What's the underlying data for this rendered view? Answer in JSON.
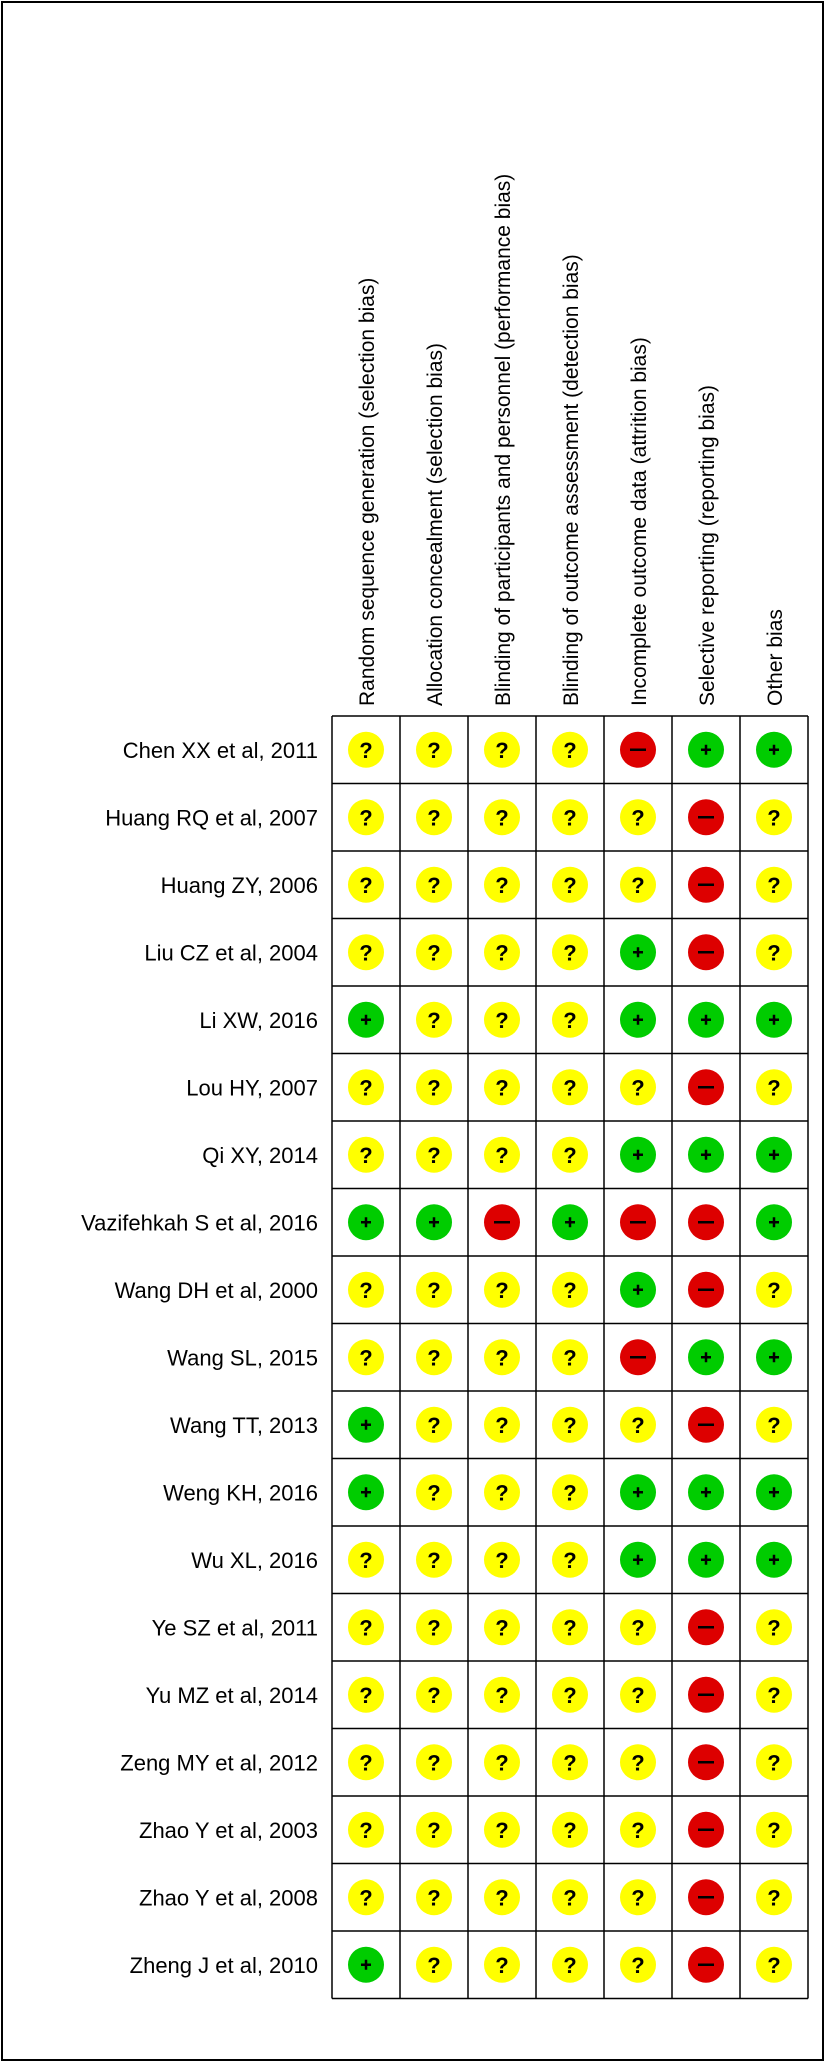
{
  "chart_data": {
    "type": "table",
    "columns": [
      "Random sequence generation (selection bias)",
      "Allocation concealment (selection bias)",
      "Blinding of participants and personnel (performance bias)",
      "Blinding of outcome assessment (detection bias)",
      "Incomplete outcome data (attrition bias)",
      "Selective reporting (reporting bias)",
      "Other bias"
    ],
    "rows": [
      {
        "study": "Chen XX et al, 2011",
        "ratings": [
          "?",
          "?",
          "?",
          "?",
          "-",
          "+",
          "+"
        ]
      },
      {
        "study": "Huang RQ et al, 2007",
        "ratings": [
          "?",
          "?",
          "?",
          "?",
          "?",
          "-",
          "?"
        ]
      },
      {
        "study": "Huang ZY, 2006",
        "ratings": [
          "?",
          "?",
          "?",
          "?",
          "?",
          "-",
          "?"
        ]
      },
      {
        "study": "Liu CZ et al, 2004",
        "ratings": [
          "?",
          "?",
          "?",
          "?",
          "+",
          "-",
          "?"
        ]
      },
      {
        "study": "Li XW, 2016",
        "ratings": [
          "+",
          "?",
          "?",
          "?",
          "+",
          "+",
          "+"
        ]
      },
      {
        "study": "Lou HY, 2007",
        "ratings": [
          "?",
          "?",
          "?",
          "?",
          "?",
          "-",
          "?"
        ]
      },
      {
        "study": "Qi XY, 2014",
        "ratings": [
          "?",
          "?",
          "?",
          "?",
          "+",
          "+",
          "+"
        ]
      },
      {
        "study": "Vazifehkah S et al, 2016",
        "ratings": [
          "+",
          "+",
          "-",
          "+",
          "-",
          "-",
          "+"
        ]
      },
      {
        "study": "Wang DH et al, 2000",
        "ratings": [
          "?",
          "?",
          "?",
          "?",
          "+",
          "-",
          "?"
        ]
      },
      {
        "study": "Wang SL, 2015",
        "ratings": [
          "?",
          "?",
          "?",
          "?",
          "-",
          "+",
          "+"
        ]
      },
      {
        "study": "Wang TT, 2013",
        "ratings": [
          "+",
          "?",
          "?",
          "?",
          "?",
          "-",
          "?"
        ]
      },
      {
        "study": "Weng KH, 2016",
        "ratings": [
          "+",
          "?",
          "?",
          "?",
          "+",
          "+",
          "+"
        ]
      },
      {
        "study": "Wu XL, 2016",
        "ratings": [
          "?",
          "?",
          "?",
          "?",
          "+",
          "+",
          "+"
        ]
      },
      {
        "study": "Ye SZ et al, 2011",
        "ratings": [
          "?",
          "?",
          "?",
          "?",
          "?",
          "-",
          "?"
        ]
      },
      {
        "study": "Yu MZ et al, 2014",
        "ratings": [
          "?",
          "?",
          "?",
          "?",
          "?",
          "-",
          "?"
        ]
      },
      {
        "study": "Zeng MY et al, 2012",
        "ratings": [
          "?",
          "?",
          "?",
          "?",
          "?",
          "-",
          "?"
        ]
      },
      {
        "study": "Zhao Y et al, 2003",
        "ratings": [
          "?",
          "?",
          "?",
          "?",
          "?",
          "-",
          "?"
        ]
      },
      {
        "study": "Zhao Y et al, 2008",
        "ratings": [
          "?",
          "?",
          "?",
          "?",
          "?",
          "-",
          "?"
        ]
      },
      {
        "study": "Zheng J et al, 2010",
        "ratings": [
          "+",
          "?",
          "?",
          "?",
          "?",
          "-",
          "?"
        ]
      }
    ],
    "legend": {
      "+": {
        "color": "#00cc00"
      },
      "?": {
        "color": "#ffff00"
      },
      "-": {
        "color": "#dd0000"
      }
    }
  }
}
